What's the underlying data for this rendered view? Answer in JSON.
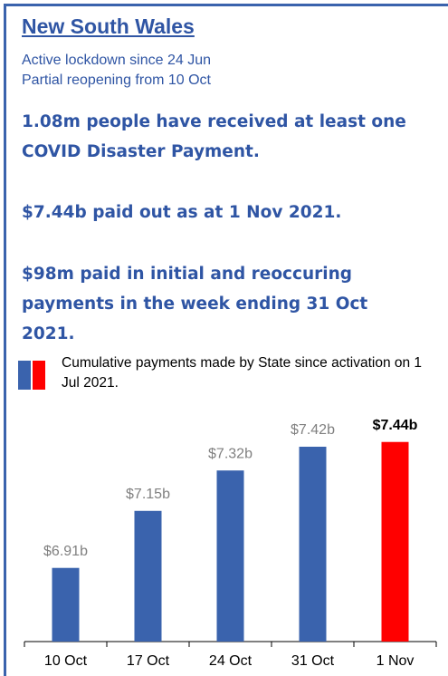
{
  "header": {
    "title": "New South Wales",
    "subtitle": [
      "Active lockdown since 24 Jun",
      "Partial reopening from 10 Oct"
    ]
  },
  "highlights": [
    "1.08m people have received at least one COVID Disaster Payment.",
    "$7.44b paid out as at 1 Nov 2021.",
    "$98m paid in initial and reoccuring payments in the week ending 31 Oct 2021."
  ],
  "chart_data": {
    "type": "bar",
    "legend": "Cumulative payments made by State since activation on 1 Jul 2021.",
    "categories": [
      "10 Oct",
      "17 Oct",
      "24 Oct",
      "31 Oct",
      "1 Nov"
    ],
    "values": [
      6.91,
      7.15,
      7.32,
      7.42,
      7.44
    ],
    "value_labels": [
      "$6.91b",
      "$7.15b",
      "$7.32b",
      "$7.42b",
      "$7.44b"
    ],
    "colors": [
      "#3a63ad",
      "#3a63ad",
      "#3a63ad",
      "#3a63ad",
      "#ff0000"
    ],
    "ylim": [
      6.6,
      7.5
    ]
  }
}
